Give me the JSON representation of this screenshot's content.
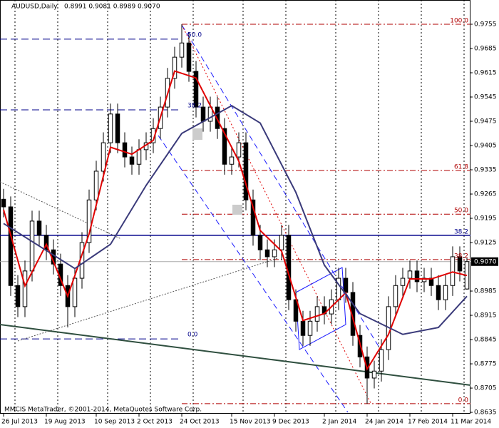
{
  "chart_data": {
    "type": "candlestick",
    "title": "AUDUSD,Daily",
    "subtitle": "0.8991 0.9081 0.8989 0.9070",
    "footer": "MMCIS MetaTrader, ©2001-2014, MetaQuotes Software Corp.",
    "up_color": "#ffffff",
    "down_color": "#000000",
    "xlim": [
      -0.5,
      65.5
    ],
    "ylim": [
      0.8631,
      0.9825
    ],
    "xticks": [
      {
        "value": 0,
        "label": "26 Jul 2013"
      },
      {
        "value": 6,
        "label": "19 Aug 2013"
      },
      {
        "value": 13,
        "label": "10 Sep 2013"
      },
      {
        "value": 19,
        "label": "2 Oct 2013"
      },
      {
        "value": 25,
        "label": "24 Oct 2013"
      },
      {
        "value": 32,
        "label": "15 Nov 2013"
      },
      {
        "value": 38,
        "label": "9 Dec 2013"
      },
      {
        "value": 45,
        "label": "2 Jan 2014"
      },
      {
        "value": 51,
        "label": "24 Jan 2014"
      },
      {
        "value": 57,
        "label": "17 Feb 2014"
      },
      {
        "value": 63,
        "label": "11 Mar 2014"
      }
    ],
    "yticks": [
      0.9755,
      0.9685,
      0.9615,
      0.9545,
      0.9475,
      0.9405,
      0.9335,
      0.9265,
      0.9195,
      0.9125,
      0.8985,
      0.8915,
      0.8845,
      0.8775,
      0.8705,
      0.8635
    ],
    "open": [
      0.925,
      0.9228,
      0.9001,
      0.894,
      0.9043,
      0.9187,
      0.9146,
      0.9104,
      0.9063,
      0.9001,
      0.894,
      0.9022,
      0.9125,
      0.9248,
      0.9331,
      0.9413,
      0.9496,
      0.9413,
      0.9372,
      0.9351,
      0.9393,
      0.9413,
      0.9454,
      0.9516,
      0.9599,
      0.966,
      0.9701,
      0.9619,
      0.9516,
      0.9475,
      0.9516,
      0.9454,
      0.9351,
      0.9372,
      0.9413,
      0.9248,
      0.9146,
      0.9104,
      0.9084,
      0.9104,
      0.9146,
      0.896,
      0.8898,
      0.8857,
      0.8898,
      0.894,
      0.8919,
      0.896,
      0.9022,
      0.8981,
      0.8857,
      0.8795,
      0.8734,
      0.8754,
      0.8816,
      0.894,
      0.9001,
      0.9022,
      0.9043,
      0.9012,
      0.9022,
      0.9001,
      0.896,
      0.9001,
      0.9084,
      0.8991
    ],
    "high": [
      0.928,
      0.9258,
      0.9031,
      0.9073,
      0.9217,
      0.9217,
      0.9176,
      0.9134,
      0.9093,
      0.9031,
      0.9052,
      0.9155,
      0.9278,
      0.9361,
      0.9443,
      0.9526,
      0.9526,
      0.9443,
      0.9402,
      0.9423,
      0.9443,
      0.9484,
      0.9546,
      0.9629,
      0.969,
      0.9755,
      0.9731,
      0.9649,
      0.9546,
      0.9546,
      0.9546,
      0.9484,
      0.9402,
      0.9443,
      0.9443,
      0.9278,
      0.9176,
      0.9134,
      0.9134,
      0.9176,
      0.9176,
      0.899,
      0.8928,
      0.8928,
      0.897,
      0.897,
      0.899,
      0.9052,
      0.9052,
      0.9011,
      0.8887,
      0.8825,
      0.8784,
      0.8846,
      0.897,
      0.9031,
      0.9052,
      0.9073,
      0.9073,
      0.9052,
      0.9052,
      0.9031,
      0.9031,
      0.9114,
      0.9114,
      0.9081
    ],
    "low": [
      0.9198,
      0.8971,
      0.891,
      0.891,
      0.9013,
      0.9116,
      0.9074,
      0.9033,
      0.8971,
      0.888,
      0.891,
      0.8992,
      0.9095,
      0.9218,
      0.9301,
      0.9383,
      0.9383,
      0.9342,
      0.9321,
      0.9321,
      0.9363,
      0.9383,
      0.9424,
      0.9486,
      0.9569,
      0.963,
      0.9589,
      0.9486,
      0.9445,
      0.9445,
      0.9424,
      0.9321,
      0.9321,
      0.9342,
      0.9218,
      0.9116,
      0.9074,
      0.9054,
      0.9054,
      0.9074,
      0.893,
      0.8868,
      0.8827,
      0.8827,
      0.8868,
      0.8889,
      0.8889,
      0.893,
      0.8951,
      0.8827,
      0.8765,
      0.866,
      0.8704,
      0.8724,
      0.8786,
      0.891,
      0.8971,
      0.8992,
      0.8982,
      0.8982,
      0.8971,
      0.893,
      0.893,
      0.8971,
      0.9013,
      0.8989
    ],
    "close": [
      0.9228,
      0.9001,
      0.894,
      0.9043,
      0.9187,
      0.9146,
      0.9104,
      0.9063,
      0.9001,
      0.894,
      0.9022,
      0.9125,
      0.9248,
      0.9331,
      0.9413,
      0.9496,
      0.9413,
      0.9372,
      0.9351,
      0.9393,
      0.9413,
      0.9454,
      0.9516,
      0.9599,
      0.966,
      0.9701,
      0.9619,
      0.9516,
      0.9475,
      0.9516,
      0.9454,
      0.9351,
      0.9372,
      0.9413,
      0.9248,
      0.9146,
      0.9104,
      0.9084,
      0.9104,
      0.9146,
      0.896,
      0.8898,
      0.8857,
      0.8898,
      0.894,
      0.8919,
      0.896,
      0.9022,
      0.8981,
      0.8857,
      0.8795,
      0.8734,
      0.8754,
      0.8816,
      0.894,
      0.9001,
      0.9022,
      0.9043,
      0.9012,
      0.9022,
      0.9001,
      0.896,
      0.9001,
      0.9084,
      0.9043,
      0.907
    ],
    "lines": [
      {
        "color": "#e00000",
        "x": [
          0,
          3,
          6,
          9,
          12,
          15,
          18,
          21,
          24,
          27,
          30,
          33,
          36,
          39,
          42,
          45,
          48,
          51,
          54,
          57,
          60,
          63,
          65
        ],
        "values": [
          0.922,
          0.9,
          0.912,
          0.897,
          0.915,
          0.94,
          0.938,
          0.942,
          0.962,
          0.96,
          0.948,
          0.936,
          0.916,
          0.91,
          0.89,
          0.892,
          0.898,
          0.876,
          0.886,
          0.902,
          0.902,
          0.904,
          0.903
        ]
      },
      {
        "color": "#3a3a7a",
        "x": [
          0,
          10,
          15,
          20,
          25,
          32,
          36,
          41,
          45,
          50,
          56,
          61,
          65
        ],
        "values": [
          0.918,
          0.905,
          0.912,
          0.929,
          0.944,
          0.952,
          0.947,
          0.927,
          0.906,
          0.892,
          0.886,
          0.888,
          0.897
        ]
      }
    ],
    "last_price": {
      "value": 0.907,
      "label": "0.9070"
    },
    "level_line": 0.9146,
    "fib_right": [
      {
        "label": "100.0",
        "price": 0.9755
      },
      {
        "label": "61.8",
        "price": 0.9333
      },
      {
        "label": "50.0",
        "price": 0.9207
      },
      {
        "label": "38.2",
        "price": 0.9076
      },
      {
        "label": "0.0",
        "price": 0.866
      }
    ],
    "fib_left": [
      {
        "label": "50.0",
        "price": 0.9712
      },
      {
        "label": "38.2",
        "price": 0.9508
      },
      {
        "label": "0.0",
        "price": 0.8847
      }
    ],
    "level_label": "38.2"
  }
}
